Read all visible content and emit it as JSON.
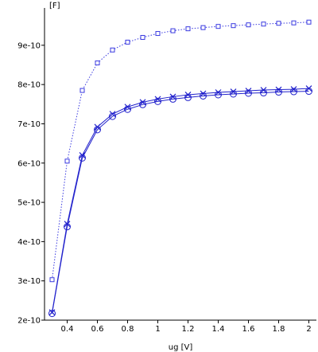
{
  "chart_data": {
    "type": "line",
    "xlabel": "ug [V]",
    "ylabel": "[F]",
    "xlim": [
      0.25,
      2.05
    ],
    "ylim": [
      2e-10,
      9.95e-10
    ],
    "xticks": [
      0.4,
      0.6,
      0.8,
      1.0,
      1.2,
      1.4,
      1.6,
      1.8,
      2.0
    ],
    "xtick_labels": [
      "0.4",
      "0.6",
      "0.8",
      "1",
      "1.2",
      "1.4",
      "1.6",
      "1.8",
      "2"
    ],
    "yticks": [
      2e-10,
      3e-10,
      4e-10,
      5e-10,
      6e-10,
      7e-10,
      8e-10,
      9e-10
    ],
    "ytick_labels": [
      "2e-10",
      "3e-10",
      "4e-10",
      "5e-10",
      "6e-10",
      "7e-10",
      "8e-10",
      "9e-10"
    ],
    "grid": false,
    "x": [
      0.3,
      0.4,
      0.5,
      0.6,
      0.7,
      0.8,
      0.9,
      1.0,
      1.1,
      1.2,
      1.3,
      1.4,
      1.5,
      1.6,
      1.7,
      1.8,
      1.9,
      2.0
    ],
    "series": [
      {
        "marker": "square",
        "line_style": "dotted",
        "color": "#3a3ae0",
        "values": [
          3.03e-10,
          6.05e-10,
          7.85e-10,
          8.55e-10,
          8.88e-10,
          9.08e-10,
          9.2e-10,
          9.3e-10,
          9.37e-10,
          9.42e-10,
          9.45e-10,
          9.48e-10,
          9.5e-10,
          9.52e-10,
          9.54e-10,
          9.56e-10,
          9.57e-10,
          9.59e-10
        ]
      },
      {
        "marker": "x",
        "line_style": "solid",
        "color": "#2222cc",
        "values": [
          2.2e-10,
          4.45e-10,
          6.2e-10,
          6.92e-10,
          7.25e-10,
          7.43e-10,
          7.55e-10,
          7.63e-10,
          7.69e-10,
          7.74e-10,
          7.77e-10,
          7.8e-10,
          7.82e-10,
          7.84e-10,
          7.86e-10,
          7.87e-10,
          7.88e-10,
          7.9e-10
        ]
      },
      {
        "marker": "circle",
        "line_style": "solid",
        "color": "#2222cc",
        "values": [
          2.17e-10,
          4.38e-10,
          6.13e-10,
          6.85e-10,
          7.19e-10,
          7.37e-10,
          7.49e-10,
          7.57e-10,
          7.63e-10,
          7.67e-10,
          7.71e-10,
          7.74e-10,
          7.76e-10,
          7.78e-10,
          7.79e-10,
          7.81e-10,
          7.82e-10,
          7.83e-10
        ]
      }
    ]
  }
}
